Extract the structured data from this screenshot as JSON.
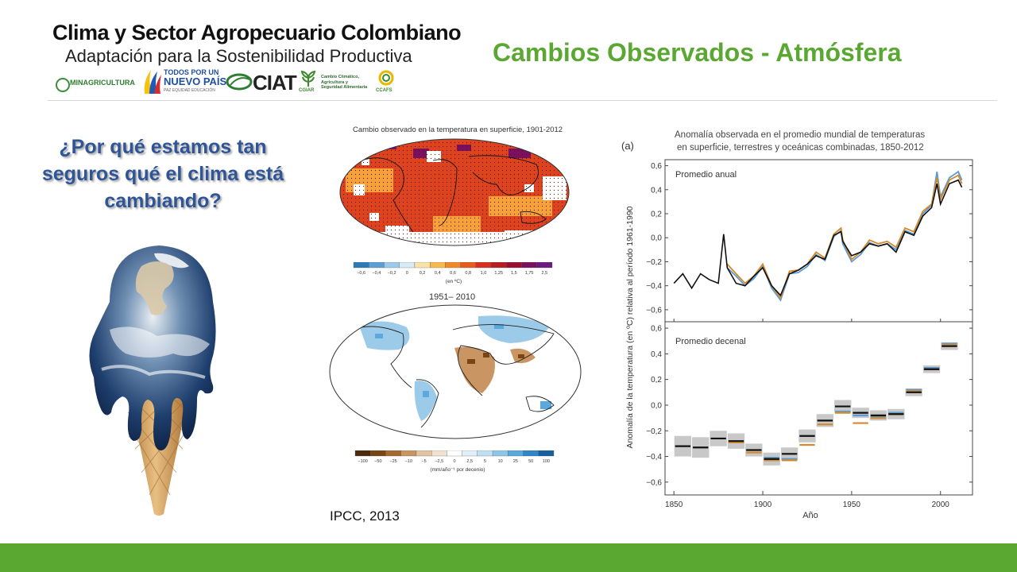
{
  "header": {
    "brand_title": "Clima y Sector Agropecuario Colombiano",
    "brand_subtitle": "Adaptación para la Sostenibilidad Productiva",
    "logos": {
      "minagricultura": "MINAGRICULTURA",
      "todos_line1": "TODOS POR UN",
      "todos_line2": "NUEVO PAÍS",
      "todos_line3": "PAZ  EQUIDAD  EDUCACIÓN",
      "ciat": "CIAT",
      "cgiar": "CGIAR",
      "ccafs_line1": "Cambio Climático,",
      "ccafs_line2": "Agricultura y",
      "ccafs_line3": "Seguridad Alimentaria",
      "ccafs": "CCAFS"
    },
    "slide_title": "Cambios Observados - Atmósfera"
  },
  "question": {
    "line1": "¿Por qué estamos tan",
    "line2": "seguros qué el clima está",
    "line3": "cambiando?"
  },
  "maps": {
    "top_title": "Cambio observado en la temperatura en superficie, 1901-2012",
    "top_scale_ticks": [
      "−0,6",
      "−0,4",
      "−0,2",
      "0",
      "0,2",
      "0,4",
      "0,6",
      "0,8",
      "1,0",
      "1,25",
      "1,5",
      "1,75",
      "2,5"
    ],
    "top_scale_unit": "(en ºC)",
    "top_scale_colors": [
      "#2c7bb6",
      "#5aa0d6",
      "#9ccbe9",
      "#d6ebf5",
      "#fbe2a8",
      "#f7b84f",
      "#f08a28",
      "#e65c1c",
      "#d7301f",
      "#b71e22",
      "#9a1030",
      "#7b1060",
      "#6a1a80"
    ],
    "bottom_title": "1951– 2010",
    "bottom_scale_ticks": [
      "−100",
      "−50",
      "−25",
      "−10",
      "−5",
      "−2,5",
      "0",
      "2,5",
      "5",
      "10",
      "25",
      "50",
      "100"
    ],
    "bottom_scale_unit": "(mm/año⁻¹ por decenio)",
    "bottom_scale_colors": [
      "#4d2a0a",
      "#7a4515",
      "#a66a30",
      "#c99563",
      "#e2c3a0",
      "#f1e2cf",
      "#ffffff",
      "#e1f0f8",
      "#bfe0f2",
      "#8ec6e8",
      "#5aa8dc",
      "#2f86c8",
      "#16609e"
    ]
  },
  "source": "IPCC, 2013",
  "chart_data": {
    "type": "line",
    "panel_label": "(a)",
    "title_line1": "Anomalía observada en el promedio mundial de temperaturas",
    "title_line2": "en superficie, terrestres y oceánicas combinadas, 1850-2012",
    "ylabel": "Anomalía de la temperatura (en ºC) relativa al período 1961-1990",
    "xlabel": "Año",
    "xlim": [
      1845,
      2018
    ],
    "x_ticks": [
      "1850",
      "1900",
      "1950",
      "2000"
    ],
    "x_tick_values": [
      1850,
      1900,
      1950,
      2000
    ],
    "ylim": [
      -0.7,
      0.65
    ],
    "y_tick_values": [
      -0.6,
      -0.4,
      -0.2,
      0.0,
      0.2,
      0.4,
      0.6
    ],
    "y_ticks": [
      "−0,6",
      "−0,4",
      "−0,2",
      "0,0",
      "0,2",
      "0,4",
      "0,6"
    ],
    "colors": {
      "black": "#111111",
      "orange": "#d4892a",
      "blue": "#5b9bd5",
      "grey_box": "#c8c8c8"
    },
    "panels": [
      {
        "name": "Promedio anual",
        "series": [
          {
            "color": "black",
            "x": [
              1850,
              1855,
              1860,
              1865,
              1870,
              1875,
              1878,
              1880,
              1885,
              1890,
              1895,
              1900,
              1905,
              1910,
              1915,
              1920,
              1925,
              1930,
              1935,
              1940,
              1944,
              1945,
              1950,
              1955,
              1960,
              1965,
              1970,
              1975,
              1980,
              1985,
              1990,
              1995,
              1998,
              2000,
              2005,
              2010,
              2012
            ],
            "y": [
              -0.38,
              -0.3,
              -0.42,
              -0.3,
              -0.35,
              -0.38,
              0.03,
              -0.25,
              -0.38,
              -0.4,
              -0.32,
              -0.25,
              -0.4,
              -0.48,
              -0.3,
              -0.27,
              -0.22,
              -0.15,
              -0.18,
              0.02,
              0.05,
              -0.03,
              -0.15,
              -0.12,
              -0.05,
              -0.07,
              -0.05,
              -0.12,
              0.05,
              0.02,
              0.18,
              0.25,
              0.45,
              0.28,
              0.45,
              0.48,
              0.42
            ]
          },
          {
            "color": "orange",
            "x": [
              1880,
              1885,
              1890,
              1895,
              1900,
              1905,
              1910,
              1915,
              1920,
              1925,
              1930,
              1935,
              1940,
              1944,
              1945,
              1950,
              1955,
              1960,
              1965,
              1970,
              1975,
              1980,
              1985,
              1990,
              1995,
              1998,
              2000,
              2005,
              2010,
              2012
            ],
            "y": [
              -0.22,
              -0.3,
              -0.38,
              -0.32,
              -0.22,
              -0.4,
              -0.5,
              -0.28,
              -0.27,
              -0.22,
              -0.12,
              -0.17,
              0.03,
              0.08,
              -0.02,
              -0.18,
              -0.12,
              -0.02,
              -0.05,
              -0.03,
              -0.08,
              0.08,
              0.05,
              0.22,
              0.28,
              0.5,
              0.32,
              0.48,
              0.52,
              0.45
            ]
          },
          {
            "color": "blue",
            "x": [
              1880,
              1885,
              1890,
              1895,
              1900,
              1905,
              1910,
              1915,
              1920,
              1925,
              1930,
              1935,
              1940,
              1944,
              1945,
              1950,
              1955,
              1960,
              1965,
              1970,
              1975,
              1980,
              1985,
              1990,
              1995,
              1998,
              2000,
              2005,
              2010,
              2012
            ],
            "y": [
              -0.25,
              -0.32,
              -0.4,
              -0.34,
              -0.24,
              -0.42,
              -0.52,
              -0.3,
              -0.29,
              -0.24,
              -0.14,
              -0.19,
              0.01,
              0.06,
              -0.05,
              -0.2,
              -0.14,
              -0.04,
              -0.07,
              -0.05,
              -0.1,
              0.06,
              0.03,
              0.2,
              0.27,
              0.55,
              0.34,
              0.5,
              0.55,
              0.48
            ]
          }
        ]
      },
      {
        "name": "Promedio decenal",
        "decades": [
          1855,
          1865,
          1875,
          1885,
          1895,
          1905,
          1915,
          1925,
          1935,
          1945,
          1955,
          1965,
          1975,
          1985,
          1995,
          2005
        ],
        "black": [
          -0.32,
          -0.33,
          -0.26,
          -0.28,
          -0.35,
          -0.42,
          -0.38,
          -0.24,
          -0.12,
          -0.01,
          -0.06,
          -0.08,
          -0.07,
          0.1,
          0.28,
          0.46
        ],
        "orange": [
          null,
          null,
          null,
          -0.29,
          -0.37,
          -0.43,
          -0.43,
          -0.31,
          -0.15,
          -0.06,
          -0.14,
          -0.1,
          -0.07,
          0.11,
          0.28,
          0.47
        ],
        "blue": [
          null,
          null,
          null,
          null,
          null,
          -0.41,
          -0.42,
          null,
          null,
          -0.05,
          -0.08,
          -0.09,
          -0.06,
          0.12,
          0.29,
          0.48
        ],
        "uncertainty": [
          0.08,
          0.08,
          0.06,
          0.06,
          0.05,
          0.05,
          0.05,
          0.05,
          0.05,
          0.05,
          0.04,
          0.04,
          0.04,
          0.03,
          0.03,
          0.03
        ]
      }
    ]
  }
}
